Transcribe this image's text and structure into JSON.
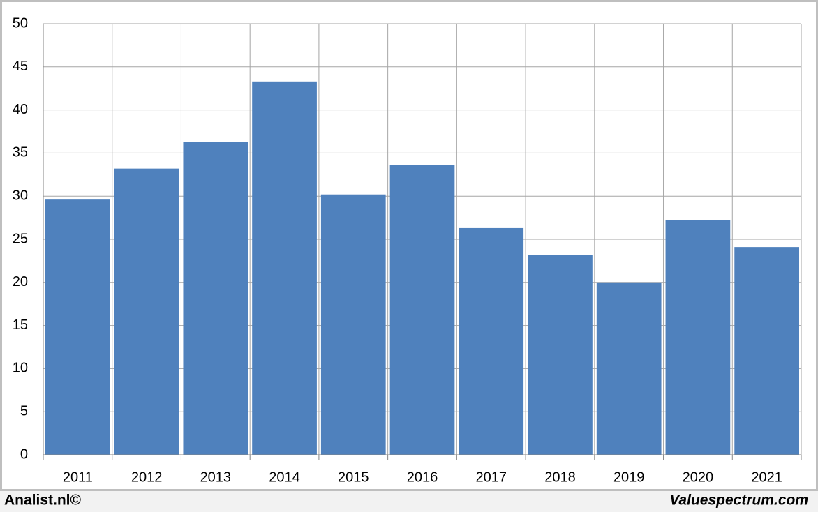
{
  "chart_data": {
    "type": "bar",
    "categories": [
      "2011",
      "2012",
      "2013",
      "2014",
      "2015",
      "2016",
      "2017",
      "2018",
      "2019",
      "2020",
      "2021"
    ],
    "values": [
      29.6,
      33.2,
      36.3,
      43.3,
      30.2,
      33.6,
      26.3,
      23.2,
      20.0,
      27.2,
      24.1
    ],
    "color": "#4f81bd",
    "ylim": [
      0,
      50
    ],
    "yticks": [
      0,
      5,
      10,
      15,
      20,
      25,
      30,
      35,
      40,
      45,
      50
    ],
    "grid": true,
    "annotations": [
      "Analist.nl©",
      "Valuespectrum.com"
    ]
  }
}
